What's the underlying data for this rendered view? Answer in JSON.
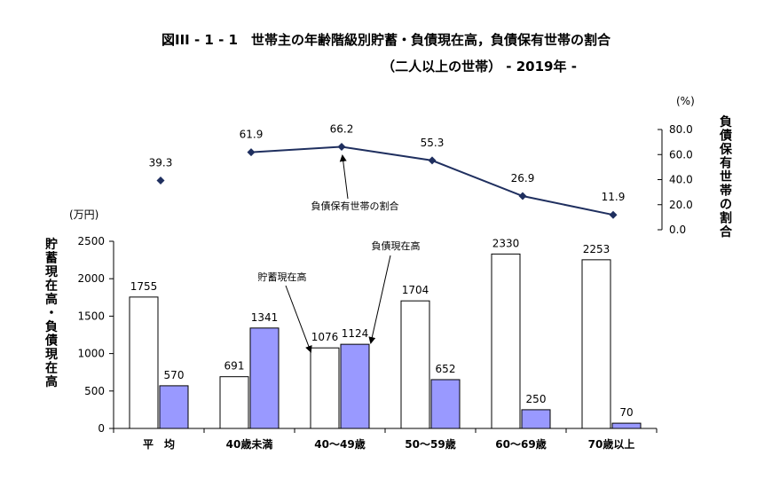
{
  "title": "図III - 1 - 1　世帯主の年齢階級別貯蓄・負債現在高，負債保有世帯の割合",
  "subtitle": "（二人以上の世帯） - 2019年 -",
  "chart_data": {
    "type": "bar+line",
    "categories": [
      "平　均",
      "40歳未満",
      "40～49歳",
      "50～59歳",
      "60～69歳",
      "70歳以上"
    ],
    "series": [
      {
        "name": "貯蓄現在高",
        "type": "bar",
        "values": [
          1755,
          691,
          1076,
          1704,
          2330,
          2253
        ],
        "color": "#ffffff"
      },
      {
        "name": "負債現在高",
        "type": "bar",
        "values": [
          570,
          1341,
          1124,
          652,
          250,
          70
        ],
        "color": "#9999ff"
      },
      {
        "name": "負債保有世帯の割合",
        "type": "line",
        "values": [
          39.3,
          61.9,
          66.2,
          55.3,
          26.9,
          11.9
        ],
        "color": "#1f2f5f",
        "average_point_unconnected": true
      }
    ],
    "left_axis": {
      "unit": "(万円)",
      "label": "貯蓄現在高・負債現在高",
      "ylim": [
        0,
        2500
      ],
      "ticks": [
        0,
        500,
        1000,
        1500,
        2000,
        2500
      ]
    },
    "right_axis": {
      "unit": "(%)",
      "label": "負債保有世帯の割合",
      "ylim": [
        0,
        80
      ],
      "ticks": [
        "0.0",
        "20.0",
        "40.0",
        "60.0",
        "80.0"
      ]
    },
    "annotations": {
      "line_label": "負債保有世帯の割合",
      "savings_label": "貯蓄現在高",
      "debt_label": "負債現在高"
    }
  }
}
